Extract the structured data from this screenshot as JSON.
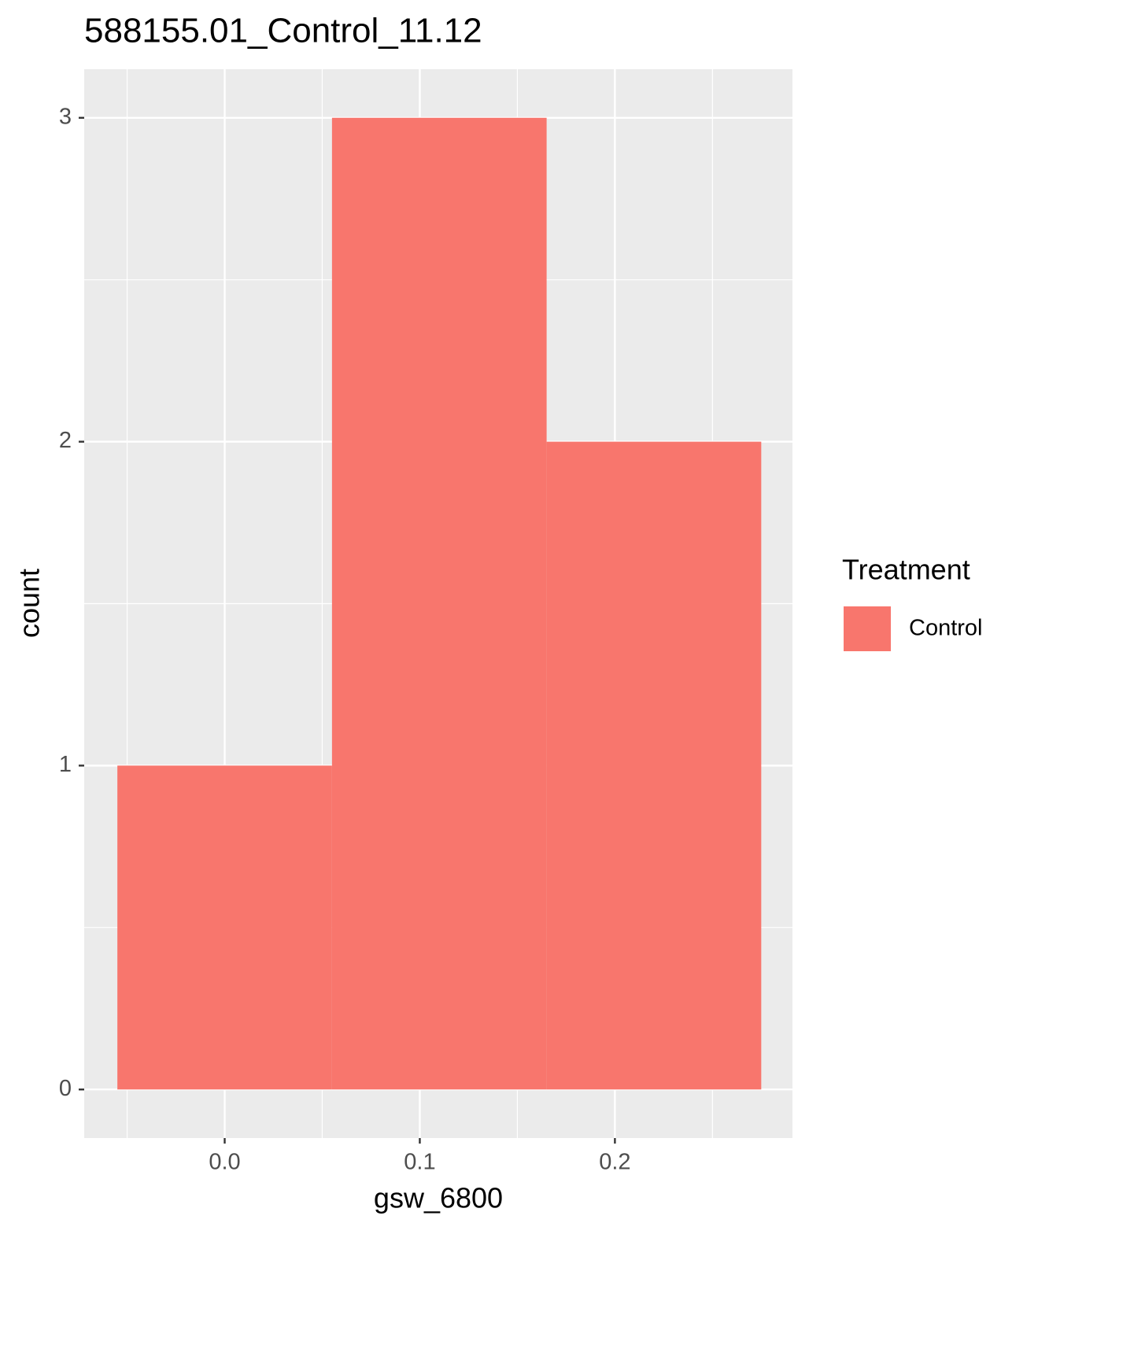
{
  "chart_data": {
    "type": "histogram",
    "title": "588155.01_Control_11.12",
    "x_label": "gsw_6800",
    "y_label": "count",
    "bins": [
      -0.055,
      0.055,
      0.165,
      0.275
    ],
    "counts": [
      1,
      3,
      2
    ],
    "color": "#F8766D",
    "xlim": [
      -0.072,
      0.291
    ],
    "ylim": [
      -0.15,
      3.15
    ],
    "xticks": [
      {
        "value": 0,
        "label": "0.0"
      },
      0.1,
      0.2
    ],
    "yticks": [
      0,
      1,
      2,
      3
    ],
    "x_minor_grid": [
      -0.05,
      0.05,
      0.15,
      0.25
    ],
    "y_minor_grid": [
      0.5,
      1.5,
      2.5
    ],
    "grid": true,
    "legend": {
      "title": "Treatment",
      "position": "right",
      "entries": [
        "Control"
      ]
    }
  }
}
